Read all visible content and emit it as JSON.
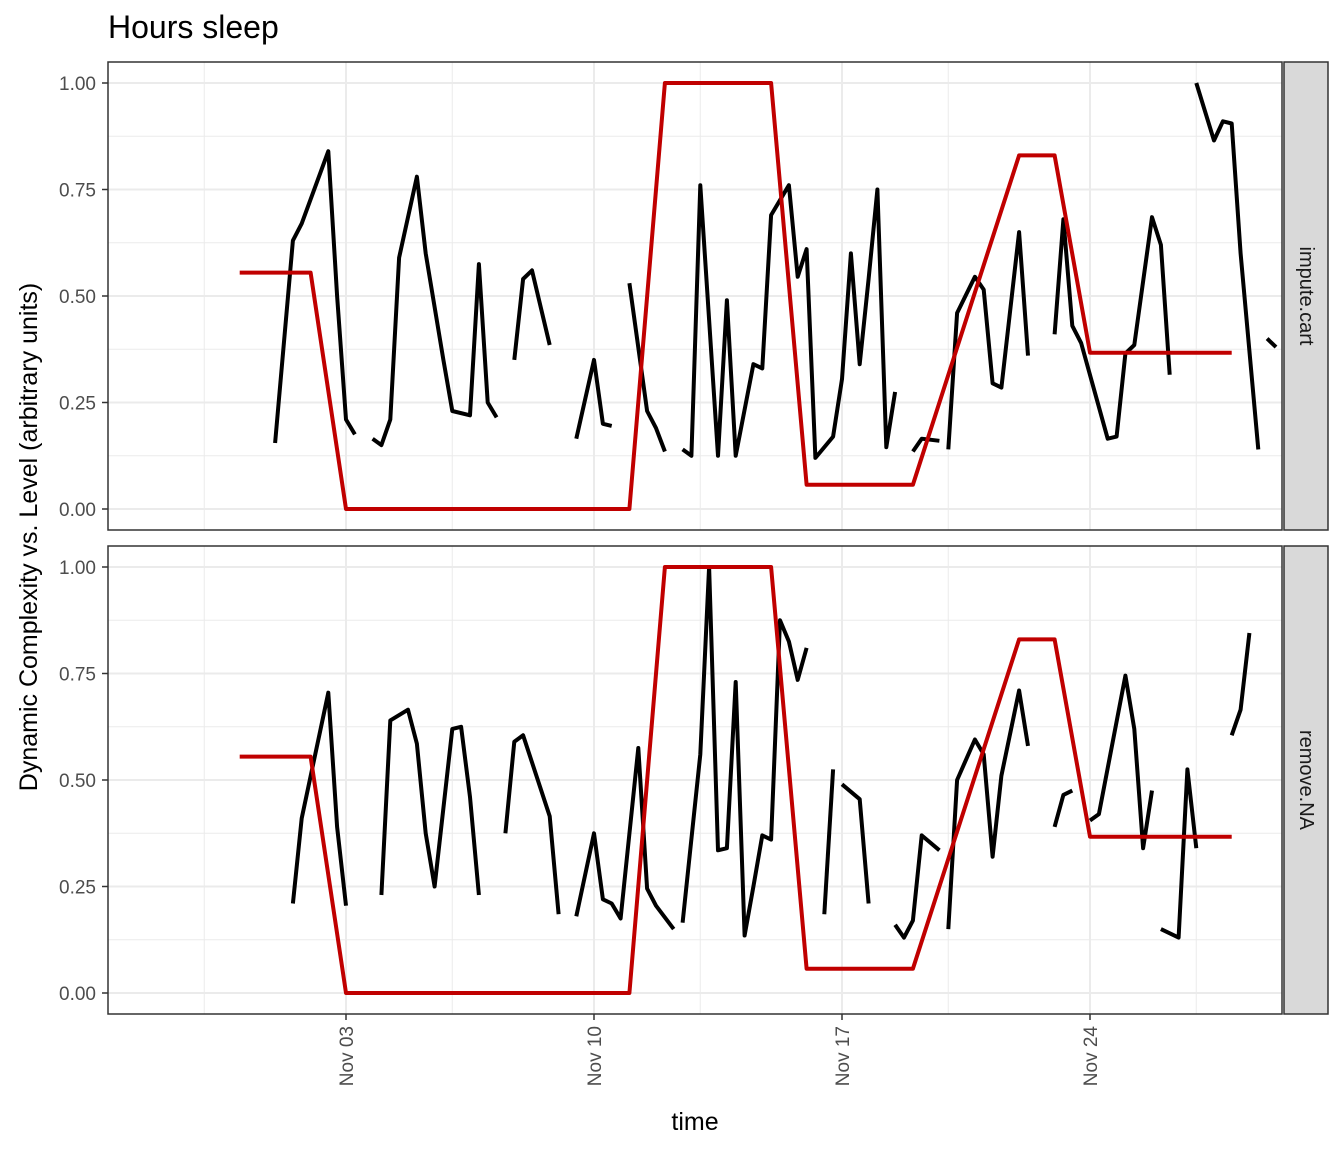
{
  "chart_data": {
    "type": "line",
    "title": "Hours sleep",
    "xlabel": "time",
    "ylabel": "Dynamic Complexity vs. Level (arbitrary units)",
    "x_range": [
      "2022-10-29",
      "2022-11-29"
    ],
    "x_ticks": [
      {
        "date": "2022-11-03",
        "label": "Nov 03"
      },
      {
        "date": "2022-11-10",
        "label": "Nov 10"
      },
      {
        "date": "2022-11-17",
        "label": "Nov 17"
      },
      {
        "date": "2022-11-24",
        "label": "Nov 24"
      }
    ],
    "ylim": [
      0,
      1
    ],
    "y_ticks": [
      {
        "value": 0,
        "label": "0.00"
      },
      {
        "value": 0.25,
        "label": "0.25"
      },
      {
        "value": 0.5,
        "label": "0.50"
      },
      {
        "value": 0.75,
        "label": "0.75"
      },
      {
        "value": 1,
        "label": "1.00"
      }
    ],
    "grid": true,
    "colors": {
      "complexity": "#000000",
      "level": "#c00000",
      "strip_fill": "#d9d9d9",
      "grid": "#ebebeb",
      "panel_border": "#333333"
    },
    "panels": [
      {
        "strip_label": "impute.cart",
        "level_line": [
          [
            "2022-10-31",
            0.555
          ],
          [
            "2022-11-02",
            0.555
          ],
          [
            "2022-11-03",
            0.0
          ],
          [
            "2022-11-11",
            0.0
          ],
          [
            "2022-11-12",
            1.0
          ],
          [
            "2022-11-15",
            1.0
          ],
          [
            "2022-11-16",
            0.057
          ],
          [
            "2022-11-19",
            0.057
          ],
          [
            "2022-11-22",
            0.83
          ],
          [
            "2022-11-23",
            0.83
          ],
          [
            "2022-11-24",
            0.367
          ],
          [
            "2022-11-28",
            0.367
          ]
        ],
        "complexity_segments": [
          [
            [
              "2022-11-01",
              0.155
            ],
            [
              "2022-11-01 12:00",
              0.63
            ],
            [
              "2022-11-01 18:00",
              0.67
            ],
            [
              "2022-11-02 12:00",
              0.84
            ],
            [
              "2022-11-02 18:00",
              0.5
            ],
            [
              "2022-11-03",
              0.21
            ],
            [
              "2022-11-03 06:00",
              0.175
            ]
          ],
          [
            [
              "2022-11-03 18:00",
              0.165
            ],
            [
              "2022-11-04",
              0.15
            ],
            [
              "2022-11-04 06:00",
              0.21
            ],
            [
              "2022-11-04 12:00",
              0.59
            ],
            [
              "2022-11-05",
              0.78
            ],
            [
              "2022-11-05 06:00",
              0.6
            ],
            [
              "2022-11-05 18:00",
              0.35
            ],
            [
              "2022-11-06",
              0.23
            ],
            [
              "2022-11-06 12:00",
              0.22
            ],
            [
              "2022-11-06 18:00",
              0.575
            ],
            [
              "2022-11-07",
              0.25
            ],
            [
              "2022-11-07 06:00",
              0.215
            ]
          ],
          [
            [
              "2022-11-07 18:00",
              0.35
            ],
            [
              "2022-11-08",
              0.54
            ],
            [
              "2022-11-08 06:00",
              0.56
            ],
            [
              "2022-11-08 18:00",
              0.385
            ]
          ],
          [
            [
              "2022-11-09 12:00",
              0.165
            ],
            [
              "2022-11-10",
              0.35
            ],
            [
              "2022-11-10 06:00",
              0.2
            ],
            [
              "2022-11-10 12:00",
              0.195
            ]
          ],
          [
            [
              "2022-11-11",
              0.53
            ],
            [
              "2022-11-11 12:00",
              0.23
            ],
            [
              "2022-11-11 18:00",
              0.19
            ],
            [
              "2022-11-12",
              0.135
            ]
          ],
          [
            [
              "2022-11-12 12:00",
              0.14
            ],
            [
              "2022-11-12 18:00",
              0.125
            ],
            [
              "2022-11-13",
              0.76
            ],
            [
              "2022-11-13 12:00",
              0.125
            ],
            [
              "2022-11-13 18:00",
              0.49
            ],
            [
              "2022-11-14",
              0.125
            ],
            [
              "2022-11-14 12:00",
              0.34
            ],
            [
              "2022-11-14 18:00",
              0.33
            ],
            [
              "2022-11-15",
              0.69
            ],
            [
              "2022-11-15 12:00",
              0.76
            ],
            [
              "2022-11-15 18:00",
              0.545
            ],
            [
              "2022-11-16",
              0.61
            ],
            [
              "2022-11-16 06:00",
              0.12
            ],
            [
              "2022-11-16 18:00",
              0.17
            ],
            [
              "2022-11-17",
              0.305
            ],
            [
              "2022-11-17 06:00",
              0.6
            ],
            [
              "2022-11-17 12:00",
              0.34
            ],
            [
              "2022-11-17 18:00",
              0.54
            ],
            [
              "2022-11-18",
              0.75
            ],
            [
              "2022-11-18 06:00",
              0.145
            ],
            [
              "2022-11-18 12:00",
              0.275
            ]
          ],
          [
            [
              "2022-11-19",
              0.135
            ],
            [
              "2022-11-19 06:00",
              0.165
            ],
            [
              "2022-11-19 18:00",
              0.16
            ]
          ],
          [
            [
              "2022-11-20",
              0.14
            ],
            [
              "2022-11-20 06:00",
              0.46
            ],
            [
              "2022-11-20 18:00",
              0.545
            ],
            [
              "2022-11-21",
              0.515
            ],
            [
              "2022-11-21 06:00",
              0.295
            ],
            [
              "2022-11-21 12:00",
              0.285
            ],
            [
              "2022-11-22",
              0.65
            ],
            [
              "2022-11-22 06:00",
              0.36
            ]
          ],
          [
            [
              "2022-11-23",
              0.41
            ],
            [
              "2022-11-23 06:00",
              0.68
            ],
            [
              "2022-11-23 12:00",
              0.43
            ],
            [
              "2022-11-23 18:00",
              0.39
            ],
            [
              "2022-11-24 12:00",
              0.165
            ],
            [
              "2022-11-24 18:00",
              0.17
            ],
            [
              "2022-11-25",
              0.365
            ],
            [
              "2022-11-25 06:00",
              0.385
            ],
            [
              "2022-11-25 18:00",
              0.685
            ],
            [
              "2022-11-26",
              0.62
            ],
            [
              "2022-11-26 06:00",
              0.315
            ]
          ],
          [
            [
              "2022-11-27",
              1.0
            ],
            [
              "2022-11-27 12:00",
              0.865
            ],
            [
              "2022-11-27 18:00",
              0.91
            ],
            [
              "2022-11-28",
              0.905
            ],
            [
              "2022-11-28 06:00",
              0.6
            ],
            [
              "2022-11-28 18:00",
              0.14
            ]
          ],
          [
            [
              "2022-11-29",
              0.4
            ],
            [
              "2022-11-29 06:00",
              0.38
            ]
          ]
        ]
      },
      {
        "strip_label": "remove.NA",
        "level_line": [
          [
            "2022-10-31",
            0.555
          ],
          [
            "2022-11-02",
            0.555
          ],
          [
            "2022-11-03",
            0.0
          ],
          [
            "2022-11-11",
            0.0
          ],
          [
            "2022-11-12",
            1.0
          ],
          [
            "2022-11-15",
            1.0
          ],
          [
            "2022-11-16",
            0.057
          ],
          [
            "2022-11-19",
            0.057
          ],
          [
            "2022-11-22",
            0.83
          ],
          [
            "2022-11-23",
            0.83
          ],
          [
            "2022-11-24",
            0.367
          ],
          [
            "2022-11-28",
            0.367
          ]
        ],
        "complexity_segments": [
          [
            [
              "2022-11-01 12:00",
              0.21
            ],
            [
              "2022-11-01 18:00",
              0.41
            ],
            [
              "2022-11-02 12:00",
              0.705
            ],
            [
              "2022-11-02 18:00",
              0.39
            ],
            [
              "2022-11-03",
              0.205
            ]
          ],
          [
            [
              "2022-11-04",
              0.23
            ],
            [
              "2022-11-04 06:00",
              0.64
            ],
            [
              "2022-11-04 18:00",
              0.665
            ],
            [
              "2022-11-05",
              0.585
            ],
            [
              "2022-11-05 06:00",
              0.375
            ],
            [
              "2022-11-05 12:00",
              0.25
            ],
            [
              "2022-11-06",
              0.62
            ],
            [
              "2022-11-06 06:00",
              0.625
            ],
            [
              "2022-11-06 12:00",
              0.46
            ],
            [
              "2022-11-06 18:00",
              0.23
            ]
          ],
          [
            [
              "2022-11-07 12:00",
              0.375
            ],
            [
              "2022-11-07 18:00",
              0.59
            ],
            [
              "2022-11-08",
              0.605
            ],
            [
              "2022-11-08 18:00",
              0.415
            ],
            [
              "2022-11-09",
              0.185
            ]
          ],
          [
            [
              "2022-11-09 12:00",
              0.18
            ],
            [
              "2022-11-10",
              0.375
            ],
            [
              "2022-11-10 06:00",
              0.22
            ],
            [
              "2022-11-10 12:00",
              0.21
            ],
            [
              "2022-11-10 18:00",
              0.175
            ],
            [
              "2022-11-11 06:00",
              0.575
            ],
            [
              "2022-11-11 12:00",
              0.245
            ],
            [
              "2022-11-11 18:00",
              0.205
            ],
            [
              "2022-11-12 06:00",
              0.15
            ]
          ],
          [
            [
              "2022-11-12 12:00",
              0.165
            ],
            [
              "2022-11-13",
              0.56
            ],
            [
              "2022-11-13 06:00",
              1.0
            ],
            [
              "2022-11-13 12:00",
              0.335
            ],
            [
              "2022-11-13 18:00",
              0.34
            ],
            [
              "2022-11-14",
              0.73
            ],
            [
              "2022-11-14 06:00",
              0.135
            ],
            [
              "2022-11-14 12:00",
              0.25
            ],
            [
              "2022-11-14 18:00",
              0.37
            ],
            [
              "2022-11-15",
              0.36
            ],
            [
              "2022-11-15 06:00",
              0.875
            ],
            [
              "2022-11-15 12:00",
              0.825
            ],
            [
              "2022-11-15 18:00",
              0.735
            ],
            [
              "2022-11-16",
              0.81
            ]
          ],
          [
            [
              "2022-11-16 12:00",
              0.185
            ],
            [
              "2022-11-16 18:00",
              0.525
            ]
          ],
          [
            [
              "2022-11-17",
              0.49
            ],
            [
              "2022-11-17 12:00",
              0.455
            ],
            [
              "2022-11-17 18:00",
              0.21
            ]
          ],
          [
            [
              "2022-11-18 12:00",
              0.16
            ],
            [
              "2022-11-18 18:00",
              0.13
            ],
            [
              "2022-11-19",
              0.17
            ],
            [
              "2022-11-19 06:00",
              0.37
            ],
            [
              "2022-11-19 18:00",
              0.335
            ]
          ],
          [
            [
              "2022-11-20",
              0.15
            ],
            [
              "2022-11-20 06:00",
              0.5
            ],
            [
              "2022-11-20 18:00",
              0.595
            ],
            [
              "2022-11-21",
              0.56
            ],
            [
              "2022-11-21 06:00",
              0.32
            ],
            [
              "2022-11-21 12:00",
              0.51
            ],
            [
              "2022-11-22",
              0.71
            ],
            [
              "2022-11-22 06:00",
              0.58
            ]
          ],
          [
            [
              "2022-11-23",
              0.39
            ],
            [
              "2022-11-23 06:00",
              0.465
            ],
            [
              "2022-11-23 12:00",
              0.475
            ]
          ],
          [
            [
              "2022-11-24",
              0.405
            ],
            [
              "2022-11-24 06:00",
              0.42
            ],
            [
              "2022-11-25",
              0.745
            ],
            [
              "2022-11-25 06:00",
              0.62
            ],
            [
              "2022-11-25 12:00",
              0.34
            ],
            [
              "2022-11-25 18:00",
              0.475
            ]
          ],
          [
            [
              "2022-11-26",
              0.15
            ],
            [
              "2022-11-26 12:00",
              0.13
            ],
            [
              "2022-11-26 18:00",
              0.525
            ],
            [
              "2022-11-27",
              0.34
            ]
          ],
          [
            [
              "2022-11-28",
              0.605
            ],
            [
              "2022-11-28 06:00",
              0.665
            ],
            [
              "2022-11-28 12:00",
              0.845
            ]
          ]
        ]
      }
    ]
  }
}
